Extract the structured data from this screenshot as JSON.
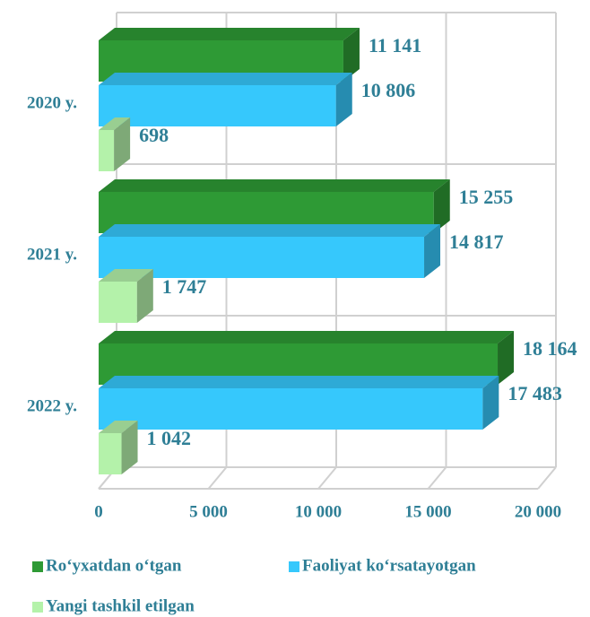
{
  "chart_data": {
    "type": "bar3d_horizontal",
    "categories": [
      "2020 y.",
      "2021 y.",
      "2022 y."
    ],
    "series": [
      {
        "name": "Ro‘yxatdan o‘tgan",
        "color": "#2e9a35",
        "values": [
          11141,
          15255,
          18164
        ],
        "value_labels": [
          "11 141",
          "15 255",
          "18 164"
        ]
      },
      {
        "name": "Faoliyat ko‘rsatayotgan",
        "color": "#36c8fc",
        "values": [
          10806,
          14817,
          17483
        ],
        "value_labels": [
          "10 806",
          "14 817",
          "17 483"
        ]
      },
      {
        "name": "Yangi tashkil etilgan",
        "color": "#b4f2aa",
        "values": [
          698,
          1747,
          1042
        ],
        "value_labels": [
          "698",
          "1 747",
          "1 042"
        ]
      }
    ],
    "xlim": [
      0,
      20000
    ],
    "xticks": [
      0,
      {
        "value": 5000,
        "label": "5 000"
      },
      {
        "value": 10000,
        "label": "10 000"
      },
      {
        "value": 15000,
        "label": "15 000"
      },
      {
        "value": 20000,
        "label": "20 000"
      }
    ],
    "grid": true
  }
}
